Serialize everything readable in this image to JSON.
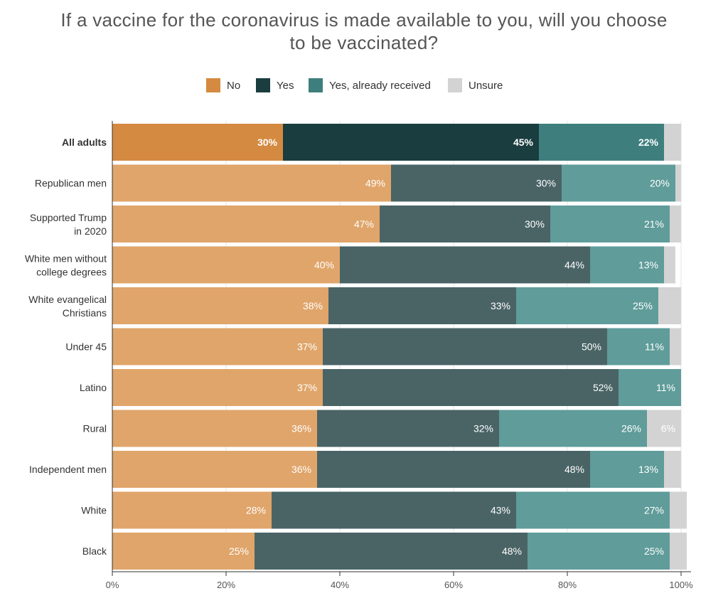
{
  "title_line1": "If a vaccine for the coronavirus is made available to you, will you choose",
  "title_line2": "to be vaccinated?",
  "chart_data": {
    "type": "bar",
    "orientation": "horizontal",
    "stacked": true,
    "title": "If a vaccine for the coronavirus is made available to you, will you choose to be vaccinated?",
    "xlabel": "",
    "ylabel": "",
    "xlim": [
      0,
      100
    ],
    "x_ticks": [
      "0%",
      "20%",
      "40%",
      "60%",
      "80%",
      "100%"
    ],
    "legend_position": "top-center",
    "grid": true,
    "categories": [
      [
        "All adults"
      ],
      [
        "Republican men"
      ],
      [
        "Supported Trump",
        "in 2020"
      ],
      [
        "White men without",
        "college degrees"
      ],
      [
        "White evangelical",
        "Christians"
      ],
      [
        "Under 45"
      ],
      [
        "Latino"
      ],
      [
        "Rural"
      ],
      [
        "Independent men"
      ],
      [
        "White"
      ],
      [
        "Black"
      ]
    ],
    "highlight_category": 0,
    "series": [
      {
        "name": "No",
        "color": "#D48A40",
        "highlight_color": "#D48A40",
        "muted_color": "#E0A56A",
        "values": [
          30,
          49,
          47,
          40,
          38,
          37,
          37,
          36,
          36,
          28,
          25
        ]
      },
      {
        "name": "Yes",
        "color": "#1A3D3F",
        "highlight_color": "#1A3D3F",
        "muted_color": "#4A6466",
        "values": [
          45,
          30,
          30,
          44,
          33,
          50,
          52,
          32,
          48,
          43,
          48
        ]
      },
      {
        "name": "Yes, already received",
        "color": "#3E7F7D",
        "highlight_color": "#3E7F7D",
        "muted_color": "#5F9C9A",
        "values": [
          22,
          20,
          21,
          13,
          25,
          11,
          11,
          26,
          13,
          27,
          25
        ]
      },
      {
        "name": "Unsure",
        "color": "#D3D3D3",
        "highlight_color": "#D3D3D3",
        "muted_color": "#D3D3D3",
        "values": [
          3,
          1,
          2,
          2,
          4,
          2,
          0,
          6,
          3,
          3,
          3
        ]
      }
    ],
    "data_labels": [
      [
        "30%",
        "45%",
        "22%",
        ""
      ],
      [
        "49%",
        "30%",
        "20%",
        ""
      ],
      [
        "47%",
        "30%",
        "21%",
        ""
      ],
      [
        "40%",
        "44%",
        "13%",
        ""
      ],
      [
        "38%",
        "33%",
        "25%",
        ""
      ],
      [
        "37%",
        "50%",
        "11%",
        ""
      ],
      [
        "37%",
        "52%",
        "11%",
        ""
      ],
      [
        "36%",
        "32%",
        "26%",
        "6%"
      ],
      [
        "36%",
        "48%",
        "13%",
        ""
      ],
      [
        "28%",
        "43%",
        "27%",
        ""
      ],
      [
        "25%",
        "48%",
        "25%",
        ""
      ]
    ]
  }
}
